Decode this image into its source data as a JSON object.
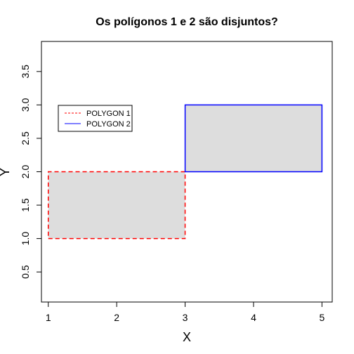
{
  "chart_data": {
    "type": "polygon",
    "title": "Os polígonos 1 e 2 são disjuntos?",
    "xlabel": "X",
    "ylabel": "Y",
    "xlim": [
      0.9,
      5.15
    ],
    "ylim": [
      0.05,
      3.95
    ],
    "x_ticks": [
      1,
      2,
      3,
      4,
      5
    ],
    "y_ticks": [
      0.5,
      1.0,
      1.5,
      2.0,
      2.5,
      3.0,
      3.5
    ],
    "y_tick_labels": [
      "0.5",
      "1.0",
      "1.5",
      "2.0",
      "2.5",
      "3.0",
      "3.5"
    ],
    "grid": false,
    "legend_position": "top-left",
    "series": [
      {
        "name": "POLYGON 1",
        "color": "#ff0000",
        "line_style": "dashed",
        "fill": "#dddddd",
        "points": [
          [
            1,
            1
          ],
          [
            3,
            1
          ],
          [
            3,
            2
          ],
          [
            1,
            2
          ]
        ]
      },
      {
        "name": "POLYGON 2",
        "color": "#0000ff",
        "line_style": "solid",
        "fill": "#dddddd",
        "points": [
          [
            3,
            2
          ],
          [
            5,
            2
          ],
          [
            5,
            3
          ],
          [
            3,
            3
          ]
        ]
      }
    ]
  }
}
